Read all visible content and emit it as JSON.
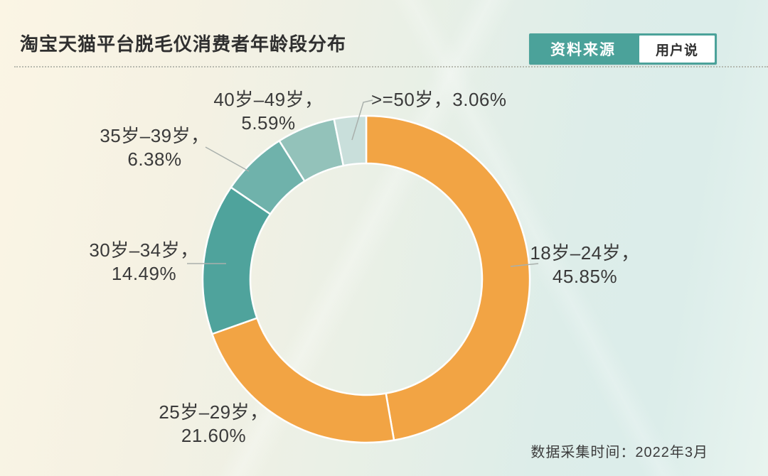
{
  "header": {
    "title": "淘宝天猫平台脱毛仪消费者年龄段分布",
    "source_label": "资料来源",
    "source_value": "用户说"
  },
  "footer": {
    "collection_note": "数据采集时间：2022年3月"
  },
  "colors": {
    "badge_teal": "#4BA29A",
    "orange": "#F2A444",
    "teal_dark": "#4FA39C",
    "teal_medium": "#6FB2AB",
    "teal_light": "#93C2BA",
    "teal_pale": "#C9DFDB",
    "divider_white": "#FFFFFF",
    "leader_gray": "#A9B0AC",
    "text": "#3A3A3A"
  },
  "chart_data": {
    "type": "pie",
    "subtype": "donut",
    "title": "淘宝天猫平台脱毛仪消费者年龄段分布",
    "unit": "percent",
    "legend_position": "callout-labels",
    "start_angle_deg": 0,
    "direction": "clockwise",
    "categories": [
      "18岁–24岁",
      "25岁–29岁",
      "30岁–34岁",
      "35岁–39岁",
      "40岁–49岁",
      ">=50岁"
    ],
    "values": [
      45.85,
      21.6,
      14.49,
      6.38,
      5.59,
      3.06
    ],
    "slices": [
      {
        "category": "18岁–24岁",
        "value": 45.85,
        "display": "45.85%",
        "color": "#F2A444",
        "label": [
          "18岁–24岁，",
          "45.85%"
        ]
      },
      {
        "category": "25岁–29岁",
        "value": 21.6,
        "display": "21.60%",
        "color": "#F2A444",
        "label": [
          "25岁–29岁，",
          "21.60%"
        ]
      },
      {
        "category": "30岁–34岁",
        "value": 14.49,
        "display": "14.49%",
        "color": "#4FA39C",
        "label": [
          "30岁–34岁，",
          "14.49%"
        ]
      },
      {
        "category": "35岁–39岁",
        "value": 6.38,
        "display": "6.38%",
        "color": "#6FB2AB",
        "label": [
          "35岁–39岁，",
          "6.38%"
        ]
      },
      {
        "category": "40岁–49岁",
        "value": 5.59,
        "display": "5.59%",
        "color": "#93C2BA",
        "label": [
          "40岁–49岁，",
          "5.59%"
        ]
      },
      {
        "category": ">=50岁",
        "value": 3.06,
        "display": "3.06%",
        "color": "#C9DFDB",
        "label": [
          ">=50岁，3.06%"
        ]
      }
    ]
  }
}
